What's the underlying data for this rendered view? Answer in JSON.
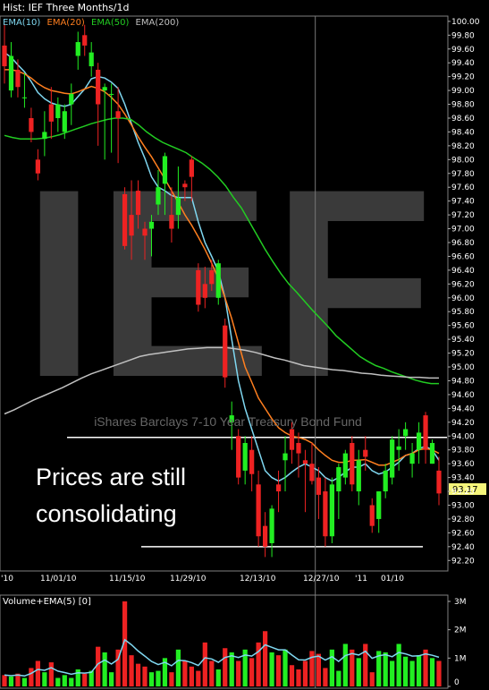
{
  "window_title": "Hist: IEF Three Months/1d",
  "chart_data": [
    {
      "type": "candlestick",
      "title": "Hist: IEF Three Months/1d",
      "watermark": "IEF",
      "subtitle": "iShares Barclays 7-10 Year Treasury Bond Fund",
      "annotation": "Prices are still consolidating",
      "last_price_label": "93.17",
      "ylim": [
        92.1,
        100.05
      ],
      "y_ticks": [
        "100.00",
        "99.80",
        "99.60",
        "99.40",
        "99.20",
        "99.00",
        "98.80",
        "98.60",
        "98.40",
        "98.20",
        "98.00",
        "97.80",
        "97.60",
        "97.40",
        "97.20",
        "97.00",
        "96.80",
        "96.60",
        "96.40",
        "96.20",
        "96.00",
        "95.80",
        "95.60",
        "95.40",
        "95.20",
        "95.00",
        "94.80",
        "94.60",
        "94.40",
        "94.20",
        "94.00",
        "93.80",
        "93.60",
        "93.40",
        "93.20",
        "93.00",
        "92.80",
        "92.60",
        "92.40",
        "92.20"
      ],
      "x_ticks": [
        "'10",
        "11/01/10",
        "11/15/10",
        "11/29/10",
        "12/13/10",
        "12/27/10",
        "'11",
        "01/10"
      ],
      "legend": [
        {
          "name": "EMA(10)",
          "color": "#7fd7f0"
        },
        {
          "name": "EMA(20)",
          "color": "#ff7f1f"
        },
        {
          "name": "EMA(50)",
          "color": "#22cc22"
        },
        {
          "name": "EMA(200)",
          "color": "#c0c0c0"
        }
      ],
      "candles": [
        {
          "o": 99.65,
          "h": 99.95,
          "l": 99.1,
          "c": 99.35
        },
        {
          "o": 99.0,
          "h": 99.7,
          "l": 98.9,
          "c": 99.5
        },
        {
          "o": 99.3,
          "h": 99.45,
          "l": 98.9,
          "c": 99.05
        },
        {
          "o": 98.9,
          "h": 99.25,
          "l": 98.75,
          "c": 98.9
        },
        {
          "o": 98.6,
          "h": 98.75,
          "l": 98.25,
          "c": 98.4
        },
        {
          "o": 98.0,
          "h": 98.15,
          "l": 97.7,
          "c": 97.8
        },
        {
          "o": 98.3,
          "h": 98.7,
          "l": 98.05,
          "c": 98.4
        },
        {
          "o": 98.8,
          "h": 99.05,
          "l": 98.3,
          "c": 98.55
        },
        {
          "o": 98.6,
          "h": 98.9,
          "l": 98.4,
          "c": 98.8
        },
        {
          "o": 98.4,
          "h": 98.8,
          "l": 98.3,
          "c": 98.7
        },
        {
          "o": 98.8,
          "h": 99.1,
          "l": 98.5,
          "c": 98.95
        },
        {
          "o": 99.5,
          "h": 99.85,
          "l": 99.3,
          "c": 99.7
        },
        {
          "o": 99.8,
          "h": 99.95,
          "l": 99.5,
          "c": 99.65
        },
        {
          "o": 99.35,
          "h": 99.7,
          "l": 99.2,
          "c": 99.55
        },
        {
          "o": 99.3,
          "h": 99.4,
          "l": 98.2,
          "c": 98.8
        },
        {
          "o": 99.0,
          "h": 99.1,
          "l": 98.0,
          "c": 99.05
        },
        {
          "o": 98.95,
          "h": 99.1,
          "l": 98.1,
          "c": 98.95
        },
        {
          "o": 98.7,
          "h": 99.05,
          "l": 97.95,
          "c": 98.6
        },
        {
          "o": 97.5,
          "h": 97.6,
          "l": 96.7,
          "c": 96.75
        },
        {
          "o": 97.2,
          "h": 97.7,
          "l": 96.55,
          "c": 96.9
        },
        {
          "o": 97.55,
          "h": 97.7,
          "l": 97.0,
          "c": 97.2
        },
        {
          "o": 97.0,
          "h": 97.1,
          "l": 96.55,
          "c": 96.9
        },
        {
          "o": 97.0,
          "h": 97.2,
          "l": 96.6,
          "c": 97.1
        },
        {
          "o": 97.35,
          "h": 97.85,
          "l": 97.2,
          "c": 97.6
        },
        {
          "o": 97.65,
          "h": 98.1,
          "l": 97.2,
          "c": 98.05
        },
        {
          "o": 97.2,
          "h": 97.6,
          "l": 96.8,
          "c": 97.0
        },
        {
          "o": 97.2,
          "h": 97.9,
          "l": 97.0,
          "c": 97.45
        },
        {
          "o": 97.65,
          "h": 97.7,
          "l": 97.4,
          "c": 97.6
        },
        {
          "o": 98.0,
          "h": 98.05,
          "l": 97.4,
          "c": 97.75
        },
        {
          "o": 96.4,
          "h": 96.5,
          "l": 95.8,
          "c": 95.9
        },
        {
          "o": 96.2,
          "h": 96.45,
          "l": 95.85,
          "c": 96.0
        },
        {
          "o": 96.4,
          "h": 96.55,
          "l": 96.1,
          "c": 96.2
        },
        {
          "o": 96.0,
          "h": 96.55,
          "l": 95.9,
          "c": 96.5
        },
        {
          "o": 95.6,
          "h": 95.7,
          "l": 94.7,
          "c": 94.85
        },
        {
          "o": 94.2,
          "h": 94.5,
          "l": 93.8,
          "c": 94.3
        },
        {
          "o": 94.0,
          "h": 94.1,
          "l": 93.3,
          "c": 93.4
        },
        {
          "o": 93.5,
          "h": 94.0,
          "l": 93.3,
          "c": 93.9
        },
        {
          "o": 93.8,
          "h": 94.0,
          "l": 93.2,
          "c": 93.45
        },
        {
          "o": 93.3,
          "h": 93.5,
          "l": 92.4,
          "c": 92.55
        },
        {
          "o": 92.7,
          "h": 92.9,
          "l": 92.25,
          "c": 92.4
        },
        {
          "o": 92.45,
          "h": 93.0,
          "l": 92.25,
          "c": 92.95
        },
        {
          "o": 93.3,
          "h": 93.5,
          "l": 92.9,
          "c": 93.2
        },
        {
          "o": 93.65,
          "h": 94.0,
          "l": 93.2,
          "c": 93.75
        },
        {
          "o": 94.1,
          "h": 94.2,
          "l": 93.6,
          "c": 93.8
        },
        {
          "o": 93.9,
          "h": 94.05,
          "l": 93.4,
          "c": 93.75
        },
        {
          "o": 93.65,
          "h": 93.8,
          "l": 92.9,
          "c": 93.6
        },
        {
          "o": 93.6,
          "h": 93.9,
          "l": 93.3,
          "c": 93.35
        },
        {
          "o": 93.4,
          "h": 93.55,
          "l": 92.8,
          "c": 93.15
        },
        {
          "o": 93.2,
          "h": 93.4,
          "l": 92.4,
          "c": 92.55
        },
        {
          "o": 92.55,
          "h": 93.4,
          "l": 92.45,
          "c": 93.3
        },
        {
          "o": 93.2,
          "h": 93.6,
          "l": 92.8,
          "c": 93.55
        },
        {
          "o": 93.4,
          "h": 93.8,
          "l": 93.3,
          "c": 93.75
        },
        {
          "o": 93.9,
          "h": 94.0,
          "l": 93.2,
          "c": 93.3
        },
        {
          "o": 93.2,
          "h": 93.8,
          "l": 93.0,
          "c": 93.65
        },
        {
          "o": 93.8,
          "h": 94.0,
          "l": 93.5,
          "c": 93.7
        },
        {
          "o": 93.0,
          "h": 93.1,
          "l": 92.6,
          "c": 92.7
        },
        {
          "o": 92.8,
          "h": 93.2,
          "l": 92.6,
          "c": 93.2
        },
        {
          "o": 93.2,
          "h": 93.6,
          "l": 93.1,
          "c": 93.5
        },
        {
          "o": 93.4,
          "h": 94.0,
          "l": 93.3,
          "c": 93.95
        },
        {
          "o": 93.8,
          "h": 94.1,
          "l": 93.5,
          "c": 93.85
        },
        {
          "o": 94.0,
          "h": 94.2,
          "l": 93.8,
          "c": 94.1
        },
        {
          "o": 93.6,
          "h": 93.9,
          "l": 93.4,
          "c": 93.75
        },
        {
          "o": 93.8,
          "h": 94.2,
          "l": 93.6,
          "c": 94.05
        },
        {
          "o": 94.3,
          "h": 94.35,
          "l": 93.6,
          "c": 93.8
        },
        {
          "o": 93.6,
          "h": 93.95,
          "l": 93.6,
          "c": 93.9
        },
        {
          "o": 93.5,
          "h": 93.7,
          "l": 93.0,
          "c": 93.17
        }
      ],
      "series": [
        {
          "name": "EMA(10)",
          "values": [
            99.55,
            99.48,
            99.37,
            99.27,
            99.13,
            98.97,
            98.88,
            98.82,
            98.79,
            98.77,
            98.8,
            98.91,
            99.02,
            99.17,
            99.2,
            99.18,
            99.12,
            99.03,
            98.8,
            98.52,
            98.25,
            98.02,
            97.75,
            97.6,
            97.55,
            97.48,
            97.45,
            97.45,
            97.45,
            97.1,
            96.8,
            96.6,
            96.38,
            96.0,
            95.4,
            94.8,
            94.4,
            94.1,
            93.8,
            93.5,
            93.4,
            93.35,
            93.4,
            93.48,
            93.55,
            93.6,
            93.55,
            93.5,
            93.4,
            93.35,
            93.4,
            93.48,
            93.55,
            93.55,
            93.6,
            93.5,
            93.45,
            93.48,
            93.55,
            93.62,
            93.72,
            93.75,
            93.82,
            93.85,
            93.8,
            93.65
          ]
        },
        {
          "name": "EMA(20)",
          "values": [
            99.3,
            99.3,
            99.28,
            99.24,
            99.18,
            99.1,
            99.04,
            99.0,
            98.98,
            98.96,
            98.95,
            98.98,
            99.02,
            99.06,
            99.03,
            98.98,
            98.9,
            98.8,
            98.66,
            98.5,
            98.33,
            98.18,
            98.04,
            97.88,
            97.72,
            97.55,
            97.38,
            97.2,
            97.05,
            96.88,
            96.7,
            96.5,
            96.28,
            96.0,
            95.7,
            95.35,
            95.0,
            94.78,
            94.55,
            94.4,
            94.25,
            94.12,
            94.05,
            94.0,
            93.98,
            93.95,
            93.9,
            93.8,
            93.72,
            93.65,
            93.62,
            93.62,
            93.65,
            93.65,
            93.66,
            93.62,
            93.58,
            93.58,
            93.62,
            93.66,
            93.72,
            93.75,
            93.8,
            93.82,
            93.8,
            93.75
          ]
        },
        {
          "name": "EMA(50)",
          "values": [
            98.35,
            98.32,
            98.3,
            98.3,
            98.3,
            98.31,
            98.33,
            98.36,
            98.4,
            98.44,
            98.48,
            98.52,
            98.55,
            98.58,
            98.6,
            98.6,
            98.58,
            98.5,
            98.4,
            98.32,
            98.25,
            98.2,
            98.15,
            98.1,
            98.02,
            97.95,
            97.86,
            97.75,
            97.62,
            97.45,
            97.3,
            97.1,
            96.9,
            96.7,
            96.52,
            96.35,
            96.2,
            96.08,
            95.95,
            95.82,
            95.7,
            95.58,
            95.45,
            95.35,
            95.25,
            95.15,
            95.08,
            95.02,
            94.98,
            94.93,
            94.89,
            94.85,
            94.81,
            94.78,
            94.76,
            94.76
          ]
        },
        {
          "name": "EMA(200)",
          "values": [
            94.32,
            94.38,
            94.45,
            94.52,
            94.58,
            94.64,
            94.7,
            94.77,
            94.84,
            94.9,
            94.95,
            95.0,
            95.05,
            95.1,
            95.15,
            95.18,
            95.2,
            95.22,
            95.24,
            95.26,
            95.27,
            95.28,
            95.28,
            95.28,
            95.26,
            95.24,
            95.21,
            95.17,
            95.13,
            95.1,
            95.06,
            95.02,
            95.0,
            94.98,
            94.96,
            94.95,
            94.93,
            94.91,
            94.9,
            94.88,
            94.87,
            94.86,
            94.85,
            94.85,
            94.84,
            94.84
          ]
        }
      ],
      "horizontal_lines": [
        93.98,
        92.4
      ],
      "vertical_marker_index": 46
    },
    {
      "type": "bar",
      "title": "Volume+EMA(5) [0]",
      "y_ticks": [
        "3M",
        "2M",
        "1M",
        "0"
      ],
      "ylim": [
        0,
        3000000
      ],
      "volume_values": [
        400000,
        350000,
        450000,
        300000,
        650000,
        900000,
        500000,
        850000,
        300000,
        400000,
        300000,
        600000,
        450000,
        550000,
        1400000,
        1200000,
        500000,
        1300000,
        3000000,
        1100000,
        800000,
        700000,
        500000,
        550000,
        1000000,
        500000,
        1300000,
        900000,
        700000,
        550000,
        1550000,
        900000,
        600000,
        1350000,
        1200000,
        900000,
        1300000,
        1000000,
        1550000,
        1950000,
        1200000,
        1100000,
        1300000,
        750000,
        600000,
        900000,
        1250000,
        1150000,
        650000,
        1300000,
        550000,
        1500000,
        1300000,
        1000000,
        1500000,
        500000,
        1250000,
        1200000,
        900000,
        1500000,
        1050000,
        900000,
        1100000,
        1300000,
        1000000,
        900000
      ],
      "ema_values": [
        400000,
        380000,
        400000,
        370000,
        460000,
        600000,
        570000,
        660000,
        540000,
        490000,
        430000,
        480000,
        470000,
        500000,
        800000,
        930000,
        790000,
        960000,
        1650000,
        1470000,
        1250000,
        1070000,
        880000,
        770000,
        850000,
        730000,
        920000,
        910000,
        840000,
        740000,
        1010000,
        970000,
        850000,
        1020000,
        1080000,
        1020000,
        1110000,
        1070000,
        1230000,
        1470000,
        1380000,
        1290000,
        1290000,
        1110000,
        940000,
        930000,
        1030000,
        1070000,
        930000,
        1050000,
        880000,
        1090000,
        1160000,
        1110000,
        1240000,
        990000,
        1080000,
        1120000,
        1050000,
        1200000,
        1150000,
        1070000,
        1080000,
        1150000,
        1100000,
        1030000
      ]
    }
  ]
}
